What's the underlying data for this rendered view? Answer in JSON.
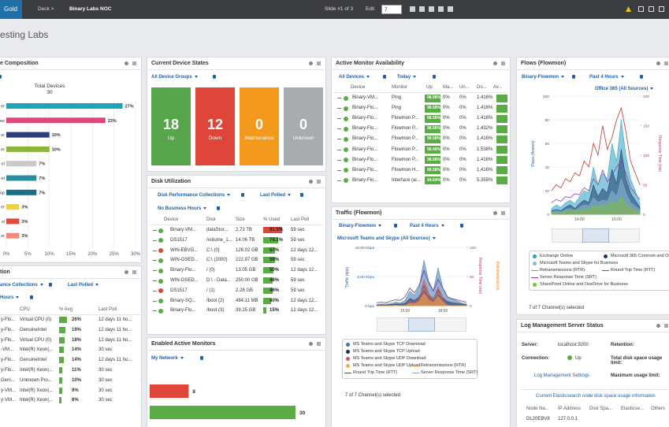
{
  "toolbar": {
    "logo": "Gold",
    "deck": "Deck >",
    "deck_name": "Binary Labs NOC",
    "slide": "Slide #1 of 3",
    "edit": "Edit",
    "slide_input": "7"
  },
  "page_title": "esting Labs",
  "composition": {
    "title": "e Composition",
    "chart_title": "Total Devices",
    "total": "30",
    "categories": [
      "er",
      "ee",
      "er",
      "er",
      "ot",
      "et",
      "op",
      "er",
      "ol",
      "er"
    ],
    "values": [
      27,
      23,
      10,
      10,
      7,
      7,
      7,
      3,
      3,
      3
    ],
    "value_labels": [
      "27%",
      "23%",
      "10%",
      "10%",
      "7%",
      "7%",
      "7%",
      "3%",
      "3%",
      "3%"
    ],
    "colors": [
      "#1ea3bb",
      "#e0457b",
      "#2b3d7d",
      "#8db33a",
      "#c9c9c9",
      "#2a8fa0",
      "#176f8a",
      "#f0d33a",
      "#e2473b",
      "#f08a7a"
    ],
    "xlim": [
      0,
      30
    ],
    "xticks": [
      {
        "value": 0,
        "label": "0%"
      },
      {
        "value": 5,
        "label": "5%"
      },
      {
        "value": 10,
        "label": "10%"
      },
      {
        "value": 15,
        "label": "15%"
      },
      {
        "value": 20,
        "label": "20%"
      },
      {
        "value": 25,
        "label": "25%"
      },
      {
        "value": 30,
        "label": "30%"
      }
    ]
  },
  "cpu_panel": {
    "title": "tion",
    "filter_collections": "ance Collections",
    "filter_poll": "Last Polled",
    "filter_hours": "Hours",
    "columns": [
      "CPU",
      "% Avg",
      "Last Poll"
    ],
    "avg_max": 30,
    "rows": [
      {
        "device": "y-Flo...",
        "cpu": "Virtual CPU (0)",
        "avg": 26,
        "avg_label": "26%",
        "last_poll": "12 days 11 ho..."
      },
      {
        "device": "y-Flo...",
        "cpu": "GenuineIntel",
        "avg": 19,
        "avg_label": "19%",
        "last_poll": "12 days 11 ho..."
      },
      {
        "device": "y-Flo...",
        "cpu": "Virtual CPU (0)",
        "avg": 18,
        "avg_label": "18%",
        "last_poll": "12 days 11 ho..."
      },
      {
        "device": "-VM...",
        "cpu": "Intel(R) Xeon(...",
        "avg": 14,
        "avg_label": "14%",
        "last_poll": "30 sec"
      },
      {
        "device": "y-Flo...",
        "cpu": "GenuineIntel",
        "avg": 14,
        "avg_label": "14%",
        "last_poll": "12 days 11 ho..."
      },
      {
        "device": "y-Flo...",
        "cpu": "Intel(R) Xeon(...",
        "avg": 11,
        "avg_label": "11%",
        "last_poll": "30 sec"
      },
      {
        "device": "Geni...",
        "cpu": "Unknown Pro...",
        "avg": 10,
        "avg_label": "10%",
        "last_poll": "30 sec"
      },
      {
        "device": "y-VM...",
        "cpu": "Intel(R) Xeon(...",
        "avg": 9,
        "avg_label": "9%",
        "last_poll": "30 sec"
      },
      {
        "device": "y-VM...",
        "cpu": "Intel(R) Xeon(...",
        "avg": 8,
        "avg_label": "8%",
        "last_poll": "30 sec"
      }
    ]
  },
  "device_states": {
    "title": "Current Device States",
    "filter": "All Device Groups",
    "tiles": [
      {
        "count": 18,
        "label": "Up",
        "color": "#56a54a"
      },
      {
        "count": 12,
        "label": "Down",
        "color": "#e0453a"
      },
      {
        "count": 0,
        "label": "Maintenance",
        "color": "#f39a1d"
      },
      {
        "count": 0,
        "label": "Unknown",
        "color": "#a9acaf"
      }
    ]
  },
  "disk_utilization": {
    "title": "Disk Utilization",
    "filter_collections": "Disk Performance Collections",
    "filter_poll": "Last Polled",
    "filter_hours": "No Business Hours",
    "columns": [
      "Device",
      "Disk",
      "Size",
      "% Used",
      "Last Poll"
    ],
    "used_max": 100,
    "alert_color": "#e0453a",
    "ok_color": "#5aac44",
    "rows": [
      {
        "status": "up",
        "device": "Binary-VM...",
        "disk": "dataStor...",
        "size": "2.73 TB",
        "used": 91.5,
        "used_label": "91.5%",
        "alert": true,
        "last_poll": "59 sec"
      },
      {
        "status": "up",
        "device": "DS1517",
        "disk": "/volume_1...",
        "size": "14.06 TB",
        "used": 74.1,
        "used_label": "74.1%",
        "alert": false,
        "last_poll": "59 sec"
      },
      {
        "status": "down",
        "device": "WIN-EBVG...",
        "disk": "C:\\ (0)",
        "size": "126.02 GB",
        "used": 57,
        "used_label": "57%",
        "alert": false,
        "last_poll": "12 days 12..."
      },
      {
        "status": "up",
        "device": "WIN-OSED...",
        "disk": "C:\\ (2000)",
        "size": "222.97 GB",
        "used": 56,
        "used_label": "56%",
        "alert": false,
        "last_poll": "59 sec"
      },
      {
        "status": "up",
        "device": "Binary-Flo...",
        "disk": "/ (0)",
        "size": "13.05 GB",
        "used": 50,
        "used_label": "50%",
        "alert": false,
        "last_poll": "12 days 12..."
      },
      {
        "status": "up",
        "device": "WIN-OSED...",
        "disk": "D:\\ - Data...",
        "size": "250.00 GB",
        "used": 48,
        "used_label": "48%",
        "alert": false,
        "last_poll": "59 sec"
      },
      {
        "status": "down",
        "device": "DS1517",
        "disk": "/ (1)",
        "size": "2.28 GB",
        "used": 46,
        "used_label": "46%",
        "alert": false,
        "last_poll": "59 sec"
      },
      {
        "status": "up",
        "device": "Binary-SQ...",
        "disk": "/boot (2)",
        "size": "484.11 MB",
        "used": 40,
        "used_label": "40%",
        "alert": false,
        "last_poll": "12 days 12..."
      },
      {
        "status": "up",
        "device": "Binary-Flo...",
        "disk": "/boot (3)",
        "size": "39.25 GB",
        "used": 15,
        "used_label": "15%",
        "alert": false,
        "last_poll": "12 days 12..."
      }
    ]
  },
  "active_monitors": {
    "title": "Enabled Active Monitors",
    "filter": "My Network",
    "values": [
      8,
      30
    ],
    "colors": [
      "#e0453a",
      "#5aac44"
    ],
    "xlim": [
      0,
      30
    ]
  },
  "availability": {
    "title": "Active Monitor Availability",
    "filter_devices": "All Devices",
    "filter_time": "Today",
    "columns": [
      "Device",
      "Monitor",
      "Up",
      "Ma...",
      "Un...",
      "Do...",
      "Av..."
    ],
    "rows": [
      [
        "Binary-VM...",
        "Ping",
        "98.58%",
        "0%",
        "0%",
        "1.416%"
      ],
      [
        "Binary-Flo...",
        "Ping",
        "98.58%",
        "0%",
        "0%",
        "1.416%"
      ],
      [
        "Binary-Flo...",
        "Flowmon P...",
        "98.58%",
        "0%",
        "0%",
        "1.416%"
      ],
      [
        "Binary-Flo...",
        "Flowmon P...",
        "98.56%",
        "0%",
        "0%",
        "1.432%"
      ],
      [
        "Binary-Flo...",
        "Flowmon P...",
        "98.58%",
        "0%",
        "0%",
        "1.416%"
      ],
      [
        "Binary-Flo...",
        "Flowmon P...",
        "98.46%",
        "0%",
        "0%",
        "1.538%"
      ],
      [
        "Binary-Flo...",
        "Flowmon P...",
        "98.58%",
        "0%",
        "0%",
        "1.416%"
      ],
      [
        "Binary-Flo...",
        "Flowmon H...",
        "98.58%",
        "0%",
        "0%",
        "1.416%"
      ],
      [
        "Binary-Flo...",
        "Interface (ai...",
        "94.64%",
        "0%",
        "0%",
        "5.355%"
      ]
    ]
  },
  "traffic": {
    "title": "Traffic (Flowmon)",
    "filter_source": "Binary-Flowmon",
    "filter_time": "Past 4 Hours",
    "footer": "7 of 7 Channel(s) selected",
    "chart_data": {
      "type": "line",
      "subtitle": "Microsoft Teams and Skype (All Sources)",
      "y_label": "Traffic (bps)",
      "y2_label": "Response Time (ms)",
      "y3_label": "Retransmissions",
      "categories": [
        null,
        null,
        null,
        null,
        null,
        null,
        "16:00",
        null,
        null,
        null,
        null,
        null,
        null,
        null,
        "18:00",
        null,
        null,
        null,
        null,
        null
      ],
      "ylim": [
        0,
        10000
      ],
      "yticks": [
        {
          "value": 0,
          "label": "0 bps"
        },
        {
          "value": 5000,
          "label": "5.00 Kbps"
        },
        {
          "value": 10000,
          "label": "10.00 Kbps"
        }
      ],
      "y2lim": [
        0,
        100
      ],
      "y2ticks": [
        0,
        50,
        100
      ],
      "grid": true,
      "series": [
        {
          "name": "MS Teams and Skype TCP Download",
          "color": "#3a78b5",
          "area": true,
          "values": [
            200,
            300,
            250,
            400,
            600,
            500,
            900,
            2500,
            1800,
            3200,
            7800,
            4200,
            2600,
            6500,
            3100,
            1500,
            1200,
            800,
            500,
            300
          ]
        },
        {
          "name": "MS Teams and Skype TCP Upload",
          "color": "#1c2f5e",
          "area": true,
          "values": [
            100,
            150,
            120,
            200,
            300,
            250,
            400,
            1200,
            900,
            1500,
            3500,
            2000,
            1300,
            2800,
            1500,
            700,
            600,
            400,
            250,
            150
          ]
        },
        {
          "name": "MS Teams and Skype UDP Download",
          "color": "#d9534f",
          "area": true,
          "values": [
            0,
            0,
            0,
            0,
            0,
            0,
            0,
            800,
            500,
            1200,
            4500,
            2200,
            900,
            3300,
            1200,
            0,
            0,
            0,
            0,
            0
          ]
        },
        {
          "name": "MS Teams and Skype UDP Upload",
          "color": "#f0ad4e",
          "area": true,
          "values": [
            0,
            0,
            0,
            0,
            0,
            0,
            0,
            400,
            300,
            700,
            2100,
            1000,
            500,
            1600,
            600,
            0,
            0,
            0,
            0,
            0
          ]
        },
        {
          "name": "Retransmissions (RTR)",
          "color": "#e67e22",
          "axis": "y2",
          "values": [
            0,
            0,
            0,
            0,
            1,
            0,
            0,
            2,
            1,
            3,
            5,
            2,
            1,
            4,
            2,
            1,
            0,
            0,
            0,
            0
          ]
        },
        {
          "name": "Round Trip Time (RTT)",
          "color": "#6c3d91",
          "axis": "y2",
          "values": [
            5,
            6,
            5,
            8,
            10,
            9,
            15,
            30,
            22,
            35,
            60,
            40,
            25,
            45,
            30,
            15,
            12,
            10,
            8,
            6
          ]
        },
        {
          "name": "Server Response Time (SRT)",
          "color": "#95a5a6",
          "axis": "y2",
          "values": [
            2,
            3,
            2,
            4,
            5,
            4,
            8,
            15,
            12,
            18,
            30,
            20,
            12,
            22,
            15,
            8,
            6,
            5,
            4,
            3
          ]
        }
      ]
    }
  },
  "flows": {
    "title": "Flows (Flowmon)",
    "filter_source": "Binary-Flowmon",
    "filter_time": "Past 4 Hours",
    "footer": "7 of 7 Channel(s) selected",
    "chart_data": {
      "type": "line",
      "subtitle": "Office 365 (All Sources)",
      "y_label": "Flows (flows/s)",
      "y2_label": "Response Time (ms)",
      "categories": [
        null,
        null,
        null,
        null,
        null,
        null,
        "14:00",
        null,
        null,
        null,
        null,
        null,
        null,
        null,
        "16:00",
        null,
        null,
        null,
        null,
        null
      ],
      "ylim": [
        0,
        100
      ],
      "yticks": [
        0,
        20,
        40,
        60,
        80,
        100
      ],
      "y2lim": [
        0,
        200
      ],
      "y2ticks": [
        0,
        50,
        100,
        150,
        200
      ],
      "grid": true,
      "series": [
        {
          "name": "Exchange Online",
          "color": "#2a9fc0",
          "area": true,
          "values": [
            5,
            8,
            6,
            10,
            12,
            9,
            15,
            20,
            18,
            40,
            25,
            35,
            30,
            60,
            45,
            80,
            50,
            30,
            20,
            10
          ]
        },
        {
          "name": "Microsoft 365 Common and Office...",
          "color": "#1b3a6b",
          "area": true,
          "values": [
            3,
            4,
            3,
            6,
            8,
            5,
            9,
            12,
            10,
            25,
            15,
            22,
            18,
            38,
            26,
            55,
            30,
            18,
            12,
            6
          ]
        },
        {
          "name": "Microsoft Teams and Skype for Business",
          "color": "#8fb8d8",
          "area": true,
          "values": [
            2,
            3,
            2,
            4,
            5,
            3,
            6,
            8,
            7,
            14,
            10,
            12,
            11,
            20,
            15,
            30,
            18,
            10,
            7,
            4
          ]
        },
        {
          "name": "Retransmissions (RTR)",
          "color": "#e67e22",
          "axis": "y2",
          "values": [
            0,
            0,
            1,
            0,
            2,
            0,
            1,
            3,
            2,
            5,
            3,
            4,
            2,
            6,
            3,
            8,
            4,
            2,
            1,
            0
          ]
        },
        {
          "name": "Round Trip Time (RTT)",
          "color": "#c0392b",
          "axis": "y2",
          "values": [
            40,
            50,
            45,
            60,
            55,
            70,
            65,
            90,
            80,
            120,
            100,
            150,
            110,
            130,
            160,
            180,
            140,
            90,
            70,
            50
          ]
        },
        {
          "name": "Server Response Time (SRT)",
          "color": "#8e44ad",
          "axis": "y2",
          "values": [
            20,
            25,
            22,
            30,
            28,
            35,
            33,
            45,
            40,
            60,
            50,
            75,
            55,
            65,
            80,
            90,
            70,
            45,
            35,
            25
          ]
        },
        {
          "name": "SharePoint Online and OneDrive for Business",
          "color": "#7fbf3f",
          "area": true,
          "values": [
            1,
            2,
            1,
            3,
            2,
            4,
            3,
            5,
            4,
            8,
            6,
            9,
            7,
            12,
            9,
            15,
            10,
            6,
            4,
            2
          ]
        }
      ]
    }
  },
  "log_management": {
    "title": "Log Management Server Status",
    "server_label": "Server:",
    "server": "localhost:9200",
    "retention_label": "Retention:",
    "connection_label": "Connection:",
    "connection": "Up",
    "disk_limit_label": "Total disk space usage limit:",
    "settings_link": "Log Management Settings",
    "max_limit_label": "Maximum usage limit:",
    "node_info": "Current Elasticsearch node disk space usage information",
    "columns": [
      "Node Na...",
      "IP Address",
      "Disk Spa...",
      "Elasticse...",
      "Others"
    ],
    "rows": [
      [
        "DL20EBV8",
        "127.0.0.1"
      ]
    ]
  }
}
